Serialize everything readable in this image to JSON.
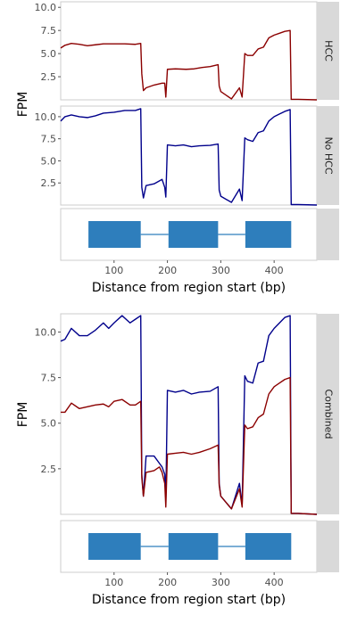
{
  "chart_data": [
    {
      "type": "line",
      "ylabel": "FPM",
      "xlabel": "Distance from region start (bp)",
      "xlim": [
        0,
        480
      ],
      "panels": [
        {
          "strip": "HCC",
          "ylim": [
            0,
            10.6
          ],
          "yticks": [
            "2.5",
            "5.0",
            "7.5",
            "10.0"
          ],
          "series": [
            {
              "color": "#8b0000",
              "x": [
                0,
                8,
                20,
                35,
                50,
                65,
                80,
                100,
                120,
                140,
                150,
                152,
                155,
                160,
                175,
                190,
                195,
                197,
                200,
                215,
                235,
                250,
                265,
                280,
                295,
                297,
                300,
                320,
                335,
                340,
                345,
                350,
                360,
                370,
                380,
                390,
                400,
                410,
                420,
                430,
                432,
                435,
                445,
                480
              ],
              "y": [
                5.6,
                5.9,
                6.1,
                6.0,
                5.85,
                5.95,
                6.05,
                6.05,
                6.05,
                6.0,
                6.1,
                2.8,
                1.0,
                1.3,
                1.6,
                1.8,
                1.8,
                0.3,
                3.3,
                3.35,
                3.3,
                3.35,
                3.5,
                3.6,
                3.8,
                1.5,
                0.9,
                0.1,
                1.3,
                0.3,
                5.0,
                4.8,
                4.8,
                5.5,
                5.7,
                6.7,
                7.0,
                7.2,
                7.4,
                7.5,
                0.05,
                0.05,
                0.05,
                0.0
              ]
            }
          ]
        },
        {
          "strip": "No HCC",
          "ylim": [
            0,
            11.2
          ],
          "yticks": [
            "2.5",
            "5.0",
            "7.5",
            "10.0"
          ],
          "series": [
            {
              "color": "#00008b",
              "x": [
                0,
                8,
                20,
                35,
                50,
                65,
                80,
                100,
                120,
                140,
                150,
                152,
                155,
                160,
                175,
                190,
                195,
                197,
                200,
                215,
                230,
                245,
                260,
                280,
                295,
                297,
                300,
                320,
                335,
                340,
                345,
                350,
                360,
                370,
                380,
                390,
                400,
                410,
                420,
                430,
                432,
                435,
                445,
                480
              ],
              "y": [
                9.5,
                10.0,
                10.2,
                10.0,
                9.9,
                10.1,
                10.4,
                10.5,
                10.7,
                10.7,
                10.9,
                2.0,
                0.8,
                2.2,
                2.4,
                2.9,
                2.0,
                0.9,
                6.8,
                6.7,
                6.8,
                6.6,
                6.7,
                6.75,
                6.9,
                1.7,
                1.0,
                0.3,
                1.8,
                0.5,
                7.6,
                7.4,
                7.2,
                8.2,
                8.4,
                9.5,
                10.0,
                10.3,
                10.6,
                10.8,
                0.05,
                0.05,
                0.05,
                0.0
              ]
            }
          ]
        },
        {
          "strip": "",
          "type": "gene_model",
          "exons": [
            [
              52,
              150
            ],
            [
              202,
              295
            ],
            [
              346,
              432
            ]
          ],
          "introns": [
            [
              150,
              202
            ],
            [
              295,
              346
            ]
          ]
        }
      ],
      "xticks": [
        "100",
        "200",
        "300",
        "400"
      ],
      "xtick_values": [
        100,
        200,
        300,
        400
      ]
    },
    {
      "type": "line",
      "ylabel": "FPM",
      "xlabel": "Distance from region start (bp)",
      "xlim": [
        0,
        480
      ],
      "panels": [
        {
          "strip": "Combined",
          "ylim": [
            0,
            11.0
          ],
          "yticks": [
            "2.5",
            "5.0",
            "7.5",
            "10.0"
          ],
          "series": [
            {
              "color": "#00008b",
              "x": [
                0,
                8,
                20,
                35,
                50,
                65,
                80,
                90,
                100,
                115,
                130,
                140,
                150,
                152,
                155,
                160,
                175,
                185,
                190,
                195,
                197,
                200,
                215,
                230,
                245,
                260,
                280,
                295,
                297,
                300,
                320,
                335,
                340,
                345,
                350,
                360,
                370,
                380,
                390,
                400,
                410,
                420,
                430,
                432,
                435,
                445,
                480
              ],
              "y": [
                9.5,
                9.6,
                10.2,
                9.8,
                9.8,
                10.1,
                10.5,
                10.2,
                10.5,
                10.9,
                10.5,
                10.7,
                10.9,
                2.2,
                1.0,
                3.2,
                3.2,
                2.8,
                2.6,
                2.2,
                0.8,
                6.8,
                6.7,
                6.8,
                6.6,
                6.7,
                6.75,
                7.0,
                1.7,
                1.0,
                0.3,
                1.7,
                0.5,
                7.6,
                7.3,
                7.2,
                8.3,
                8.4,
                9.8,
                10.2,
                10.5,
                10.8,
                10.9,
                0.05,
                0.05,
                0.05,
                0.0
              ]
            },
            {
              "color": "#8b0000",
              "x": [
                0,
                8,
                20,
                35,
                50,
                65,
                80,
                90,
                100,
                115,
                130,
                140,
                150,
                152,
                155,
                160,
                175,
                185,
                190,
                195,
                197,
                200,
                215,
                230,
                245,
                260,
                280,
                295,
                297,
                300,
                320,
                335,
                340,
                345,
                350,
                360,
                370,
                380,
                390,
                400,
                410,
                420,
                430,
                432,
                435,
                445,
                480
              ],
              "y": [
                5.6,
                5.6,
                6.1,
                5.8,
                5.9,
                6.0,
                6.05,
                5.9,
                6.2,
                6.3,
                6.0,
                6.0,
                6.2,
                2.0,
                1.0,
                2.3,
                2.4,
                2.6,
                2.3,
                1.7,
                0.4,
                3.3,
                3.35,
                3.4,
                3.3,
                3.4,
                3.6,
                3.8,
                1.6,
                1.0,
                0.3,
                1.4,
                0.4,
                4.9,
                4.7,
                4.8,
                5.3,
                5.5,
                6.6,
                7.0,
                7.2,
                7.4,
                7.5,
                0.05,
                0.05,
                0.05,
                0.0
              ]
            }
          ]
        },
        {
          "strip": "",
          "type": "gene_model",
          "exons": [
            [
              52,
              150
            ],
            [
              202,
              295
            ],
            [
              346,
              432
            ]
          ],
          "introns": [
            [
              150,
              202
            ],
            [
              295,
              346
            ]
          ]
        }
      ],
      "xticks": [
        "100",
        "200",
        "300",
        "400"
      ],
      "xtick_values": [
        100,
        200,
        300,
        400
      ]
    }
  ]
}
